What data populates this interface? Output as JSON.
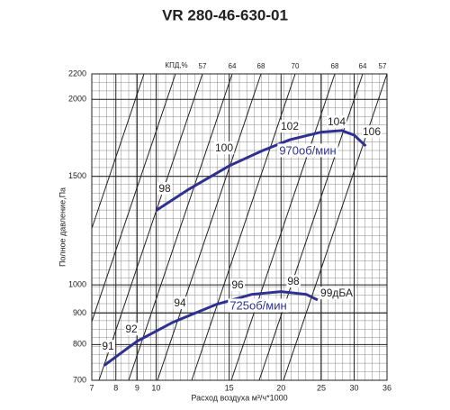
{
  "chart_data": {
    "type": "line",
    "title": "VR 280-46-630-01",
    "y_label": "Полное давление,Па",
    "x_label": "Расход воздуха м³/ч*1000",
    "efficiency_label": "КПД,%",
    "efficiency_labels": [
      "57",
      "64",
      "68",
      "70",
      "68",
      "64",
      "57"
    ],
    "log_x": true,
    "log_y": true,
    "grid": true,
    "xlim": [
      7,
      36
    ],
    "xticks": [
      7,
      8,
      9,
      10,
      15,
      20,
      25,
      30,
      36
    ],
    "ylim": [
      700,
      2200
    ],
    "yticks": [
      700,
      800,
      900,
      1000,
      1500,
      2000,
      2200
    ],
    "series": [
      {
        "name": "970об/мин",
        "color": "#2e3192",
        "x": [
          10,
          12,
          15,
          18,
          21,
          25,
          28,
          30,
          32
        ],
        "values": [
          1320,
          1430,
          1560,
          1650,
          1720,
          1770,
          1780,
          1750,
          1680
        ],
        "noise_labels": [
          "98",
          "100",
          "102",
          "104",
          "106"
        ]
      },
      {
        "name": "725об/мин",
        "color": "#2e3192",
        "x": [
          7.5,
          9,
          11,
          14,
          17,
          20,
          23,
          24.5
        ],
        "values": [
          740,
          810,
          870,
          930,
          965,
          975,
          965,
          945
        ],
        "noise_labels": [
          "91",
          "92",
          "94",
          "96",
          "98",
          "99дБА"
        ]
      }
    ]
  }
}
